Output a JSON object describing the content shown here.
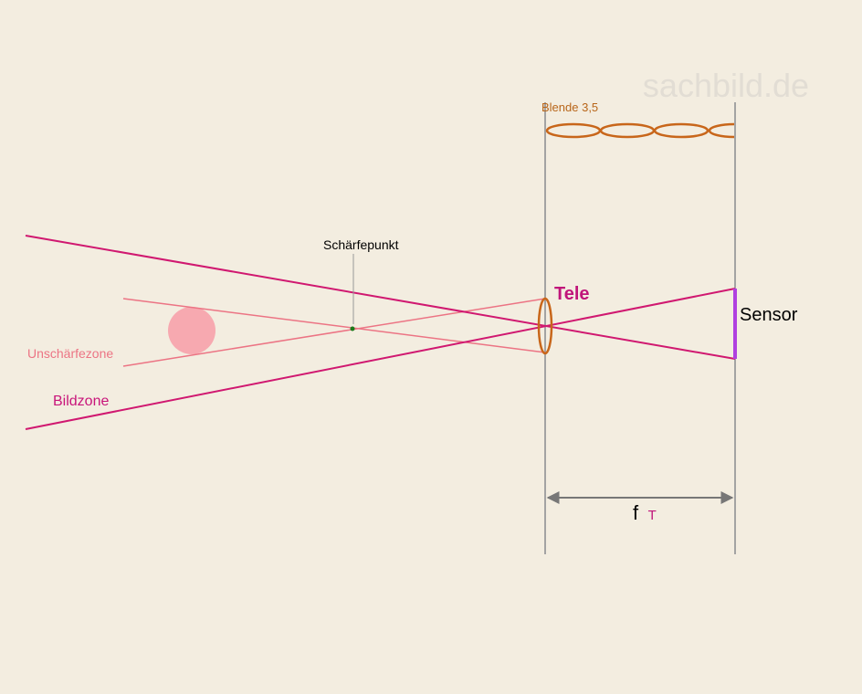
{
  "watermark": "sachbild.de",
  "labels": {
    "aperture": "Blende 3,5",
    "focus_point": "Schärfepunkt",
    "lens": "Tele",
    "sensor": "Sensor",
    "blur_zone": "Unschärfezone",
    "image_zone": "Bildzone",
    "focal_symbol": "f",
    "focal_subscript": "T"
  },
  "colors": {
    "background": "#f3ede0",
    "image_rays": "#d01870",
    "blur_rays": "#ec7080",
    "lens": "#c8661a",
    "sensor": "#b040e0",
    "guides": "#999999",
    "blur_disc": "#f8a8b0",
    "focus_dot": "#1a7a1a",
    "watermark": "#e0dcd4",
    "tele_label": "#c0157a",
    "subscript": "#c0157a"
  }
}
